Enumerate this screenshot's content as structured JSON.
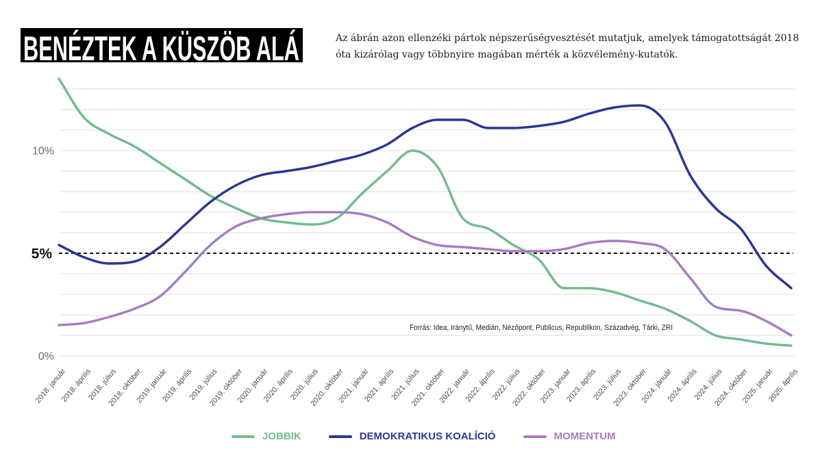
{
  "chart_data": {
    "type": "line",
    "title": "BENÉZTEK A KÜSZÖB ALÁ",
    "subtitle": "Az ábrán azon ellenzéki pártok népszerűségvesztését mutatjuk, amelyek támogatottságát 2018 óta kizárólag vagy többnyire magában mérték a közvélemény-kutatók.",
    "categories": [
      "2018. január",
      "2018. április",
      "2018. július",
      "2018. október",
      "2019. január",
      "2019. április",
      "2019. július",
      "2019. október",
      "2020. január",
      "2020. április",
      "2020. július",
      "2020. október",
      "2021. január",
      "2021. április",
      "2021. július",
      "2021. október",
      "2022. január",
      "2022. április",
      "2022. július",
      "2022. október",
      "2023. január",
      "2023. április",
      "2023. július",
      "2023. október",
      "2024. január",
      "2024. április",
      "2024. július",
      "2024. október",
      "2025. január",
      "2025. április"
    ],
    "series": [
      {
        "name": "JOBBIK",
        "color": "#74bb8e",
        "values": [
          13.5,
          11.6,
          10.8,
          10.2,
          9.4,
          8.6,
          7.8,
          7.2,
          6.7,
          6.5,
          6.4,
          6.7,
          7.9,
          9.0,
          10.0,
          9.2,
          6.7,
          6.2,
          5.4,
          4.7,
          3.3,
          3.3,
          3.1,
          2.7,
          2.3,
          1.7,
          1.0,
          0.8,
          0.6,
          0.5
        ]
      },
      {
        "name": "DEMOKRATIKUS KOALÍCIÓ",
        "color": "#2c3691",
        "values": [
          5.4,
          4.8,
          4.5,
          4.6,
          5.3,
          6.4,
          7.5,
          8.3,
          8.8,
          9.0,
          9.2,
          9.5,
          9.8,
          10.3,
          11.1,
          11.5,
          11.5,
          11.1,
          11.1,
          11.2,
          11.4,
          11.8,
          12.1,
          12.2,
          11.4,
          8.8,
          7.2,
          6.2,
          4.4,
          3.3
        ]
      },
      {
        "name": "MOMENTUM",
        "color": "#a77cc2",
        "values": [
          1.5,
          1.6,
          1.9,
          2.3,
          2.9,
          4.1,
          5.4,
          6.3,
          6.7,
          6.9,
          7.0,
          7.0,
          6.9,
          6.5,
          5.8,
          5.4,
          5.3,
          5.2,
          5.1,
          5.1,
          5.2,
          5.5,
          5.6,
          5.5,
          5.2,
          3.8,
          2.4,
          2.2,
          1.7,
          1.0
        ]
      }
    ],
    "yticks": [
      0,
      5,
      10
    ],
    "ytick_labels": [
      "0%",
      "5%",
      "10%"
    ],
    "ylim": [
      0,
      13.5
    ],
    "grid": true,
    "grid_step": 1,
    "reference_line": {
      "value": 5
    },
    "legend_position": "bottom",
    "source": "Forrás: Idea, Iránytű, Medián, Nézőpont, Publicus, Republikon, Századvég, Tárki, ZRI"
  }
}
